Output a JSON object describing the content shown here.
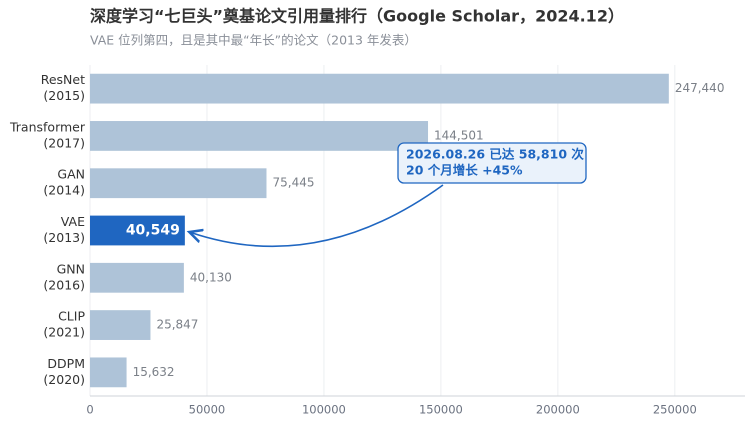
{
  "chart_data": {
    "type": "bar",
    "orientation": "horizontal",
    "title": "深度学习“七巨头”奠基论文引用量排行（Google Scholar，2024.12）",
    "subtitle": "VAE 位列第四，且是其中最“年长”的论文（2013 年发表）",
    "categories": [
      [
        "ResNet",
        "(2015)"
      ],
      [
        "Transformer",
        "(2017)"
      ],
      [
        "GAN",
        "(2014)"
      ],
      [
        "VAE",
        "(2013)"
      ],
      [
        "GNN",
        "(2016)"
      ],
      [
        "CLIP",
        "(2021)"
      ],
      [
        "DDPM",
        "(2020)"
      ]
    ],
    "values": [
      247440,
      144501,
      75445,
      40549,
      40130,
      25847,
      15632
    ],
    "value_labels": [
      "247,440",
      "144,501",
      "75,445",
      "40,549",
      "40,130",
      "25,847",
      "15,632"
    ],
    "colors": [
      "#aec3d8",
      "#aec3d8",
      "#aec3d8",
      "#1f66c1",
      "#aec3d8",
      "#aec3d8",
      "#aec3d8"
    ],
    "xlim": [
      0,
      280000
    ],
    "xticks": [
      0,
      50000,
      100000,
      150000,
      200000,
      250000
    ],
    "grid": true,
    "annotation": {
      "lines": [
        "2026.08.26 已达 58,810 次",
        "20 个月增长 +45%"
      ]
    }
  }
}
